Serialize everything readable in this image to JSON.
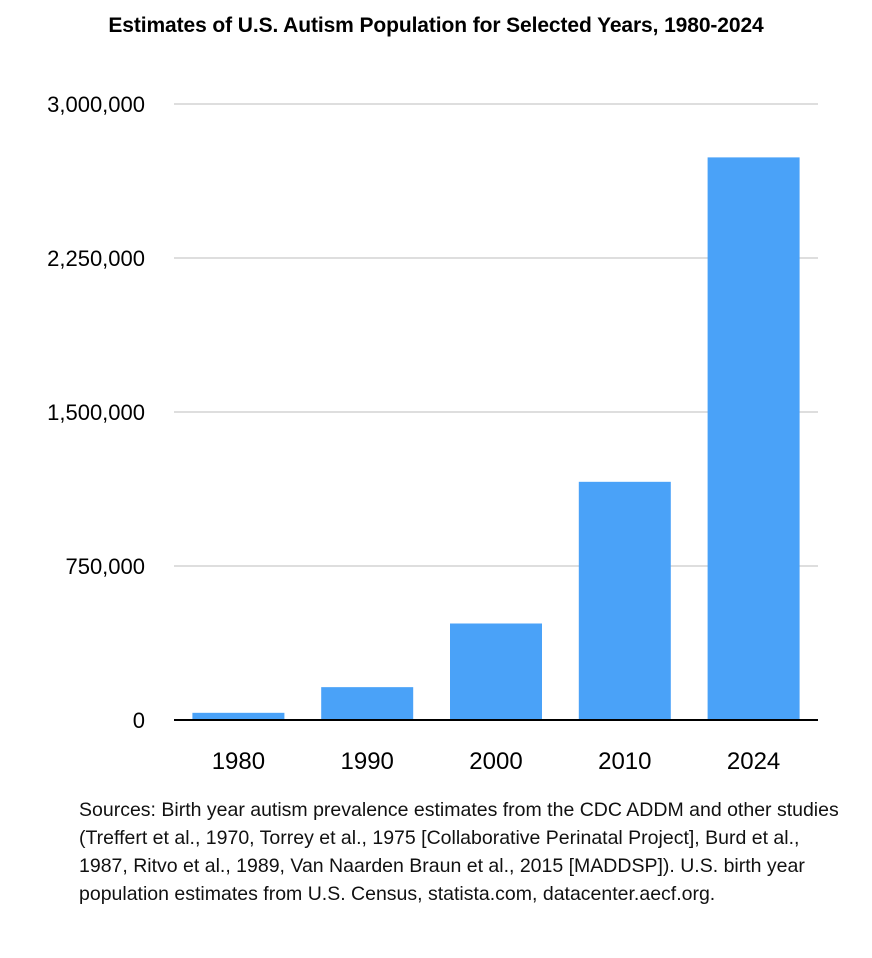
{
  "chart_data": {
    "type": "bar",
    "title": "Estimates of U.S. Autism Population for Selected Years, 1980-2024",
    "categories": [
      "1980",
      "1990",
      "2000",
      "2010",
      "2024"
    ],
    "values": [
      35000,
      160000,
      470000,
      1160000,
      2740000
    ],
    "ylim": [
      0,
      3000000
    ],
    "yticks": [
      0,
      750000,
      1500000,
      2250000,
      3000000
    ],
    "ytick_labels": [
      "0",
      "750,000",
      "1,500,000",
      "2,250,000",
      "3,000,000"
    ],
    "xlabel": "",
    "ylabel": "",
    "grid": true,
    "legend": "none",
    "bar_color": "#4aa2f8"
  },
  "sources_text": "Sources: Birth year autism prevalence estimates from the CDC ADDM and other studies (Treffert et al., 1970, Torrey et al., 1975 [Collaborative Perinatal Project], Burd et al., 1987, Ritvo et al., 1989, Van Naarden Braun et al., 2015 [MADDSP]). U.S. birth year population estimates from U.S. Census, statista.com, datacenter.aecf.org."
}
